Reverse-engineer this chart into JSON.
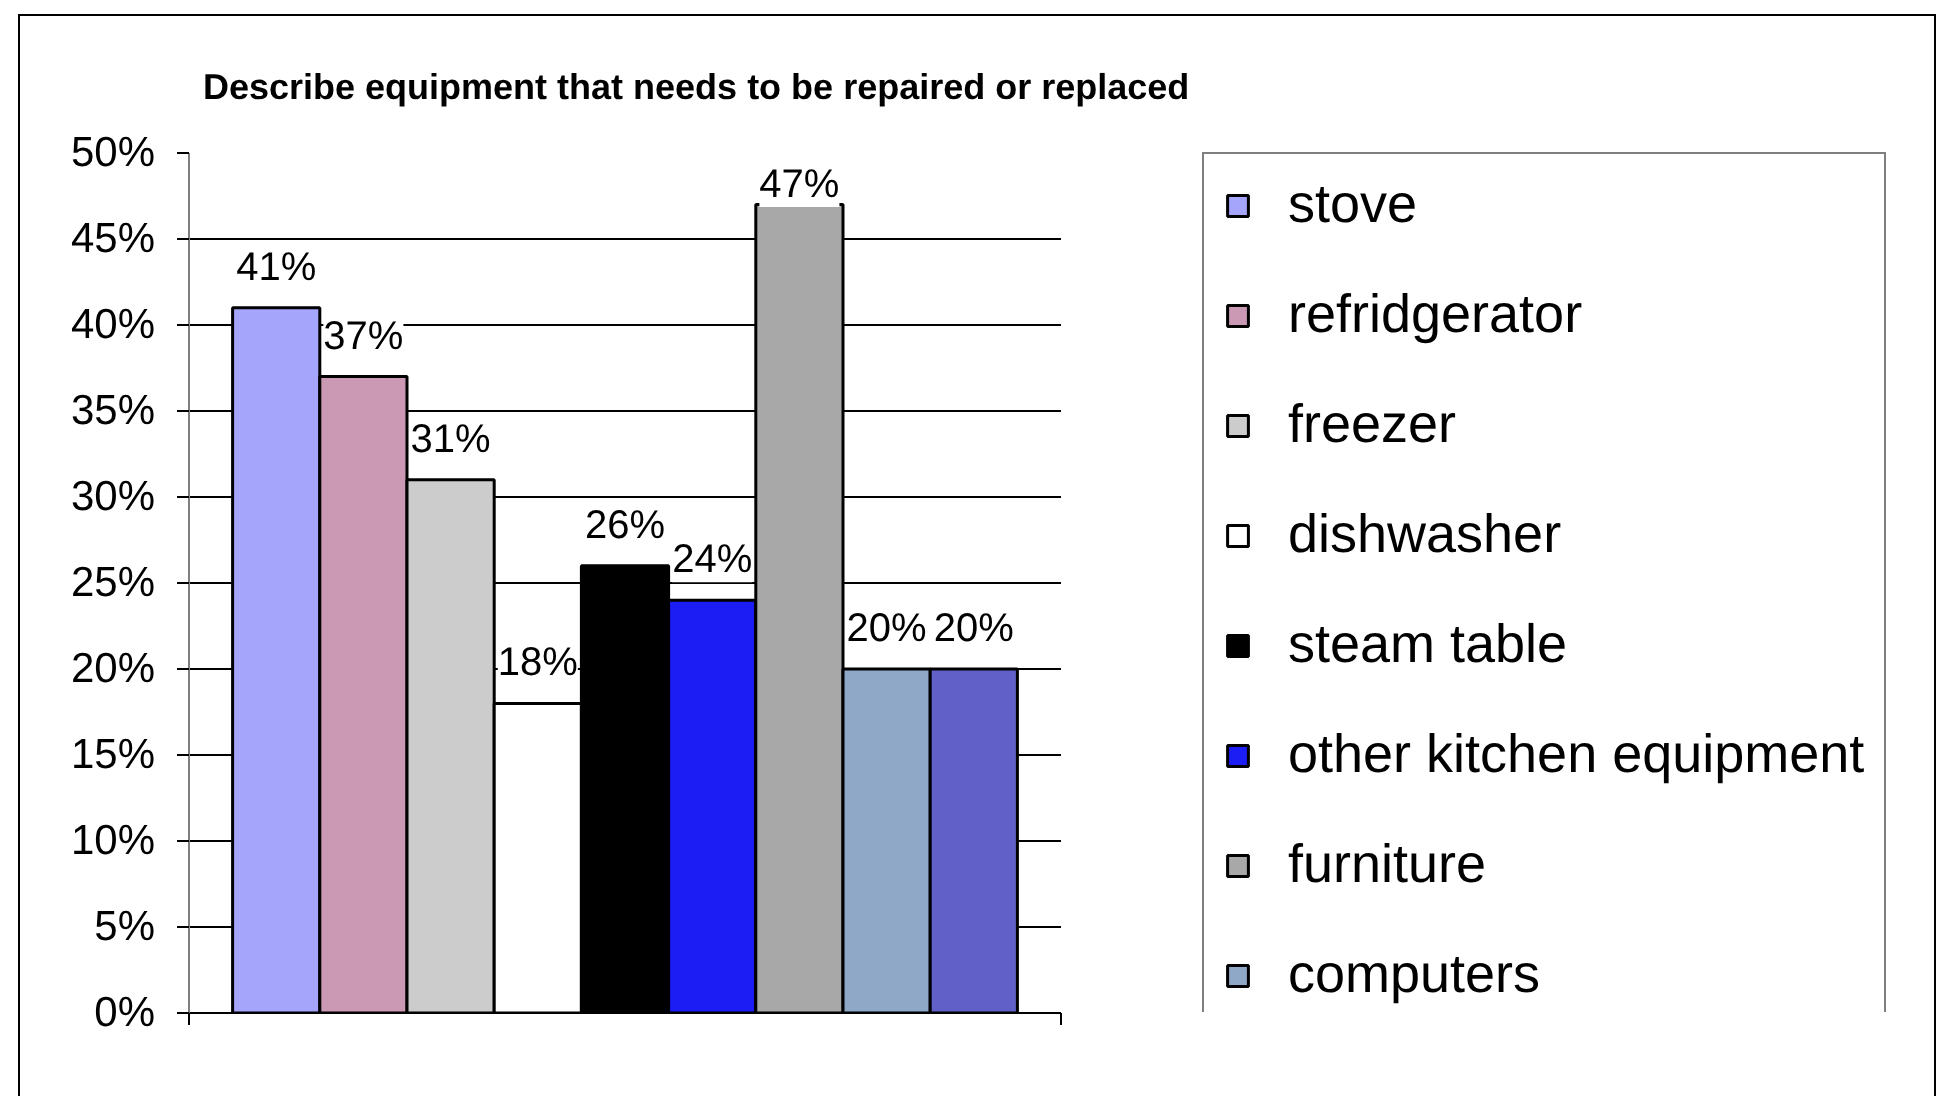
{
  "chart_data": {
    "type": "bar",
    "title": "Describe equipment that needs to be repaired or replaced",
    "categories": [
      null
    ],
    "series": [
      {
        "name": "stove",
        "color": "#a5a5fb",
        "values": [
          41
        ],
        "value_labels": [
          "41%"
        ]
      },
      {
        "name": "refridgerator",
        "color": "#cc99b5",
        "values": [
          37
        ],
        "value_labels": [
          "37%"
        ]
      },
      {
        "name": "freezer",
        "color": "#cccccc",
        "values": [
          31
        ],
        "value_labels": [
          "31%"
        ]
      },
      {
        "name": "dishwasher",
        "color": "#ffffff",
        "values": [
          18
        ],
        "value_labels": [
          "18%"
        ]
      },
      {
        "name": "steam table",
        "color": "#000000",
        "values": [
          26
        ],
        "value_labels": [
          "26%"
        ]
      },
      {
        "name": "other kitchen equipment",
        "color": "#1c1cf5",
        "values": [
          24
        ],
        "value_labels": [
          "24%"
        ]
      },
      {
        "name": "furniture",
        "color": "#a8a8a8",
        "values": [
          47
        ],
        "value_labels": [
          "47%"
        ]
      },
      {
        "name": "computers",
        "color": "#8fa8c8",
        "values": [
          20
        ],
        "value_labels": [
          "20%"
        ]
      },
      {
        "color": "#6060c8",
        "values": [
          20
        ],
        "value_labels": [
          "20%"
        ]
      }
    ],
    "ylim": [
      0,
      50
    ],
    "yticks": [
      {
        "value": 0,
        "label": "0%"
      },
      {
        "value": 5,
        "label": "5%"
      },
      {
        "value": 10,
        "label": "10%"
      },
      {
        "value": 15,
        "label": "15%"
      },
      {
        "value": 20,
        "label": "20%"
      },
      {
        "value": 25,
        "label": "25%"
      },
      {
        "value": 30,
        "label": "30%"
      },
      {
        "value": 35,
        "label": "35%"
      },
      {
        "value": 40,
        "label": "40%"
      },
      {
        "value": 45,
        "label": "45%"
      },
      {
        "value": 50,
        "label": "50%"
      }
    ],
    "grid": "y",
    "legend": "right",
    "tick_labels": "y"
  }
}
